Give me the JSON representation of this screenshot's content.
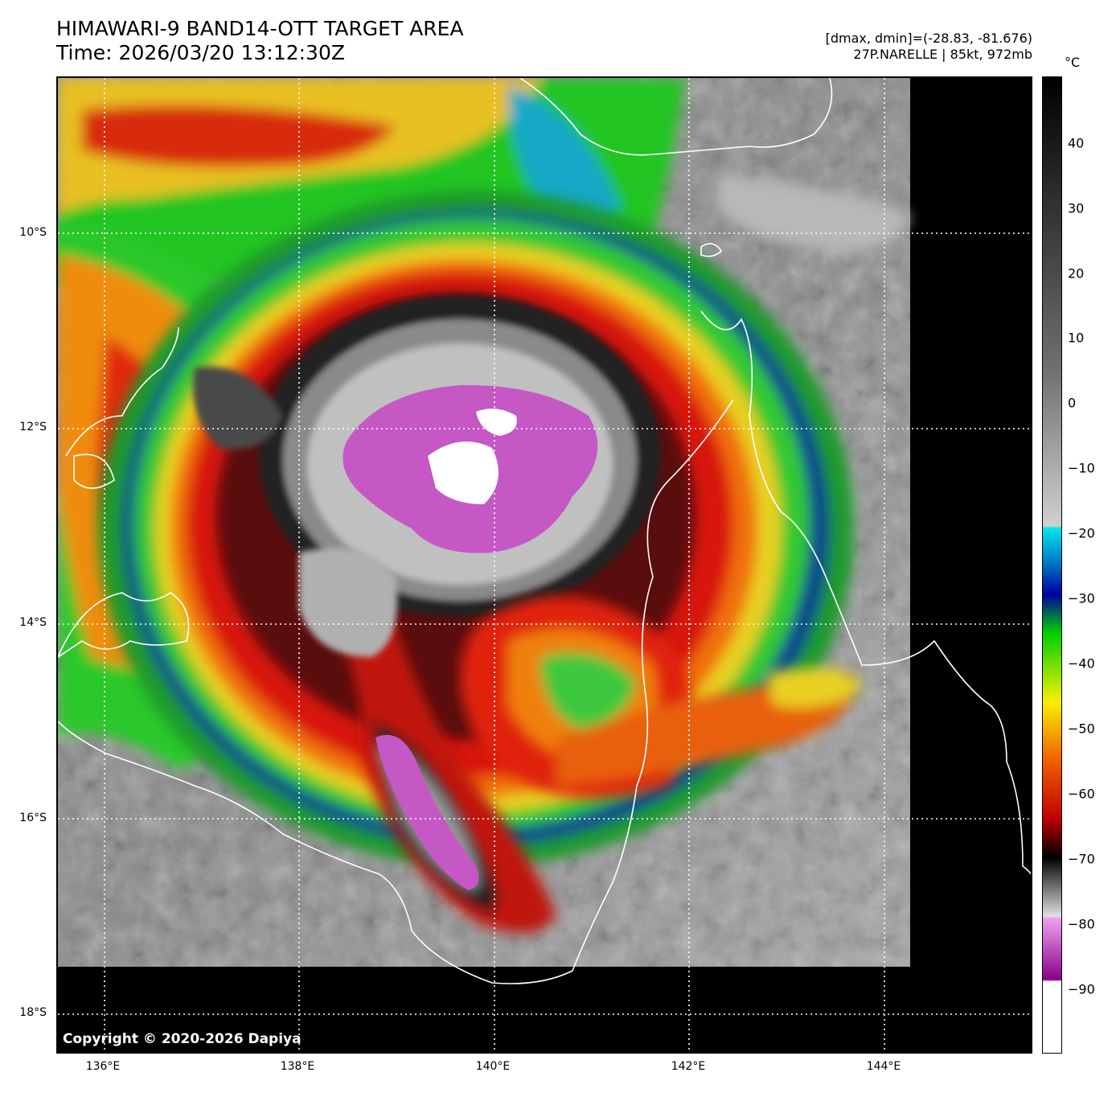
{
  "header": {
    "title_line1": "HIMAWARI-9 BAND14-OTT TARGET AREA",
    "title_line2": "Time: 2026/03/20 13:12:30Z",
    "info_line1": "[dmax, dmin]=(-28.83, -81.676)",
    "info_line2": "27P.NARELLE | 85kt, 972mb"
  },
  "map": {
    "copyright": "Copyright © 2020-2026 Dapiya",
    "lat_labels": [
      "10°S",
      "12°S",
      "14°S",
      "16°S",
      "18°S"
    ],
    "lon_labels": [
      "136°E",
      "138°E",
      "140°E",
      "142°E",
      "144°E"
    ],
    "grid": "dotted white",
    "colors": {
      "no_data": "#000000",
      "coast": "#ffffff",
      "cold_top": "#c558c5",
      "coldest_top": "#ffffff"
    }
  },
  "colorbar": {
    "unit": "°C",
    "ticks": [
      "40",
      "30",
      "20",
      "10",
      "0",
      "−10",
      "−20",
      "−30",
      "−40",
      "−50",
      "−60",
      "−70",
      "−80",
      "−90"
    ]
  }
}
